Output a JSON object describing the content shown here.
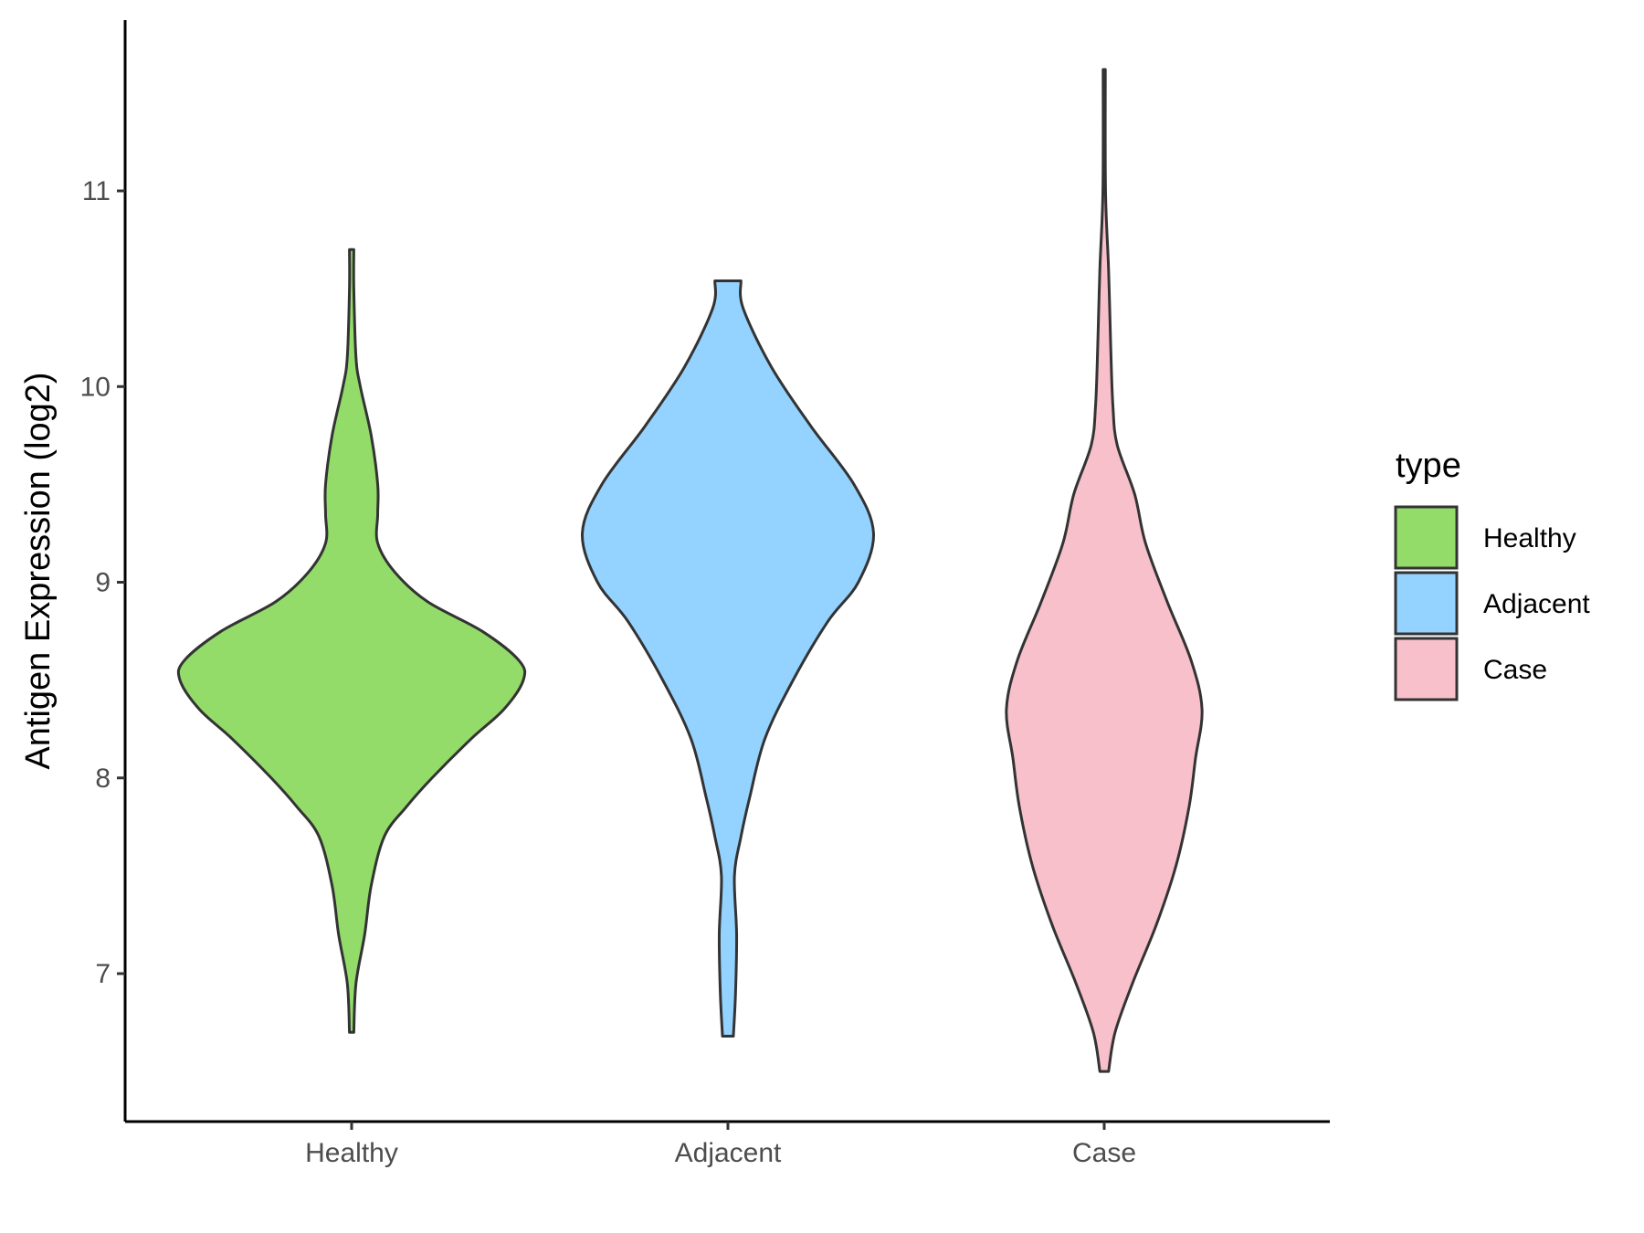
{
  "chart_data": {
    "type": "violin",
    "title": "",
    "xlabel": "",
    "ylabel": "Antigen Expression (log2)",
    "ylim": [
      6.25,
      11.86
    ],
    "yticks": [
      7,
      8,
      9,
      10,
      11
    ],
    "grid": false,
    "categories": [
      "Healthy",
      "Adjacent",
      "Case"
    ],
    "legend": {
      "title": "type",
      "position": "right",
      "entries": [
        {
          "label": "Healthy",
          "color": "#93DC6A"
        },
        {
          "label": "Adjacent",
          "color": "#94D3FF"
        },
        {
          "label": "Case",
          "color": "#F7C0CB"
        }
      ]
    },
    "outline_color": "#333333",
    "series": [
      {
        "name": "Healthy",
        "color": "#93DC6A",
        "min": 6.7,
        "max": 10.7,
        "density_profile": [
          [
            6.7,
            0.01
          ],
          [
            6.95,
            0.02
          ],
          [
            7.2,
            0.06
          ],
          [
            7.45,
            0.09
          ],
          [
            7.7,
            0.15
          ],
          [
            7.85,
            0.25
          ],
          [
            8.0,
            0.37
          ],
          [
            8.2,
            0.55
          ],
          [
            8.35,
            0.7
          ],
          [
            8.5,
            0.79
          ],
          [
            8.6,
            0.77
          ],
          [
            8.75,
            0.6
          ],
          [
            8.9,
            0.35
          ],
          [
            9.05,
            0.2
          ],
          [
            9.2,
            0.12
          ],
          [
            9.35,
            0.12
          ],
          [
            9.5,
            0.12
          ],
          [
            9.75,
            0.09
          ],
          [
            10.0,
            0.04
          ],
          [
            10.15,
            0.02
          ],
          [
            10.5,
            0.01
          ],
          [
            10.7,
            0.01
          ]
        ]
      },
      {
        "name": "Adjacent",
        "color": "#94D3FF",
        "min": 6.68,
        "max": 10.54,
        "density_profile": [
          [
            6.68,
            0.025
          ],
          [
            6.9,
            0.035
          ],
          [
            7.2,
            0.04
          ],
          [
            7.5,
            0.03
          ],
          [
            7.7,
            0.06
          ],
          [
            7.9,
            0.1
          ],
          [
            8.2,
            0.17
          ],
          [
            8.5,
            0.3
          ],
          [
            8.8,
            0.46
          ],
          [
            9.0,
            0.6
          ],
          [
            9.25,
            0.67
          ],
          [
            9.5,
            0.58
          ],
          [
            9.8,
            0.38
          ],
          [
            10.1,
            0.2
          ],
          [
            10.4,
            0.07
          ],
          [
            10.54,
            0.06
          ]
        ]
      },
      {
        "name": "Case",
        "color": "#F7C0CB",
        "min": 6.5,
        "max": 11.62,
        "density_profile": [
          [
            6.5,
            0.02
          ],
          [
            6.7,
            0.05
          ],
          [
            6.95,
            0.13
          ],
          [
            7.25,
            0.24
          ],
          [
            7.55,
            0.33
          ],
          [
            7.85,
            0.39
          ],
          [
            8.1,
            0.42
          ],
          [
            8.35,
            0.45
          ],
          [
            8.6,
            0.4
          ],
          [
            8.9,
            0.29
          ],
          [
            9.2,
            0.19
          ],
          [
            9.45,
            0.14
          ],
          [
            9.7,
            0.06
          ],
          [
            9.9,
            0.04
          ],
          [
            10.2,
            0.03
          ],
          [
            10.6,
            0.02
          ],
          [
            11.0,
            0.006
          ],
          [
            11.62,
            0.005
          ]
        ]
      }
    ]
  }
}
